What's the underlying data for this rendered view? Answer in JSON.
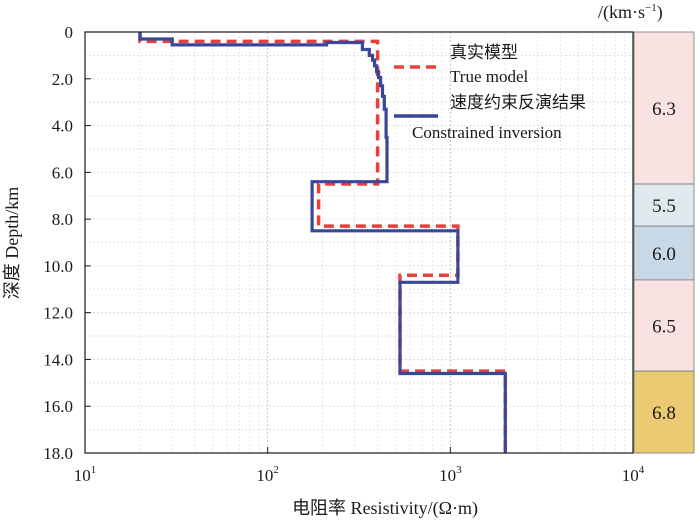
{
  "chart_data": {
    "type": "line",
    "title": "",
    "xlabel": "电阻率 Resistivity/(Ω·m)",
    "ylabel": "深度 Depth/km",
    "x_scale": "log",
    "xlim": [
      10,
      10000
    ],
    "ylim": [
      0,
      18
    ],
    "y_inverted": true,
    "grid": true,
    "x_ticks": [
      {
        "value": 10,
        "base": "10",
        "exp": "1"
      },
      {
        "value": 100,
        "base": "10",
        "exp": "2"
      },
      {
        "value": 1000,
        "base": "10",
        "exp": "3"
      },
      {
        "value": 10000,
        "base": "10",
        "exp": "4"
      }
    ],
    "y_ticks": [
      {
        "value": 0,
        "label": "0"
      },
      {
        "value": 2,
        "label": "2.0"
      },
      {
        "value": 4,
        "label": "4.0"
      },
      {
        "value": 6,
        "label": "6.0"
      },
      {
        "value": 8,
        "label": "8.0"
      },
      {
        "value": 10,
        "label": "10.0"
      },
      {
        "value": 12,
        "label": "12.0"
      },
      {
        "value": 14,
        "label": "14.0"
      },
      {
        "value": 16,
        "label": "16.0"
      },
      {
        "value": 18,
        "label": "18.0"
      }
    ],
    "legend_position": "top-right",
    "series": [
      {
        "name_zh": "真实模型",
        "name_en": "True model",
        "color": "#e8413c",
        "style": "dashed",
        "points": [
          [
            20,
            0
          ],
          [
            20,
            0.4
          ],
          [
            400,
            0.4
          ],
          [
            400,
            6.5
          ],
          [
            190,
            6.5
          ],
          [
            190,
            8.3
          ],
          [
            1100,
            8.3
          ],
          [
            1100,
            10.4
          ],
          [
            530,
            10.4
          ],
          [
            530,
            14.5
          ],
          [
            2000,
            14.5
          ],
          [
            2000,
            18
          ]
        ]
      },
      {
        "name_zh": "速度约束反演结果",
        "name_en": "Constrained inversion",
        "color": "#3a4697",
        "style": "solid",
        "points": [
          [
            20,
            0
          ],
          [
            20,
            0.3
          ],
          [
            30,
            0.3
          ],
          [
            30,
            0.55
          ],
          [
            210,
            0.55
          ],
          [
            210,
            0.45
          ],
          [
            330,
            0.45
          ],
          [
            330,
            0.75
          ],
          [
            360,
            0.75
          ],
          [
            360,
            1.0
          ],
          [
            375,
            1.0
          ],
          [
            375,
            1.2
          ],
          [
            385,
            1.2
          ],
          [
            385,
            1.45
          ],
          [
            395,
            1.45
          ],
          [
            395,
            1.7
          ],
          [
            405,
            1.7
          ],
          [
            405,
            1.95
          ],
          [
            415,
            1.95
          ],
          [
            415,
            2.3
          ],
          [
            425,
            2.3
          ],
          [
            425,
            2.75
          ],
          [
            435,
            2.75
          ],
          [
            435,
            3.3
          ],
          [
            445,
            3.3
          ],
          [
            445,
            4.5
          ],
          [
            450,
            4.5
          ],
          [
            450,
            6.4
          ],
          [
            175,
            6.4
          ],
          [
            175,
            8.5
          ],
          [
            1100,
            8.5
          ],
          [
            1100,
            10.7
          ],
          [
            530,
            10.7
          ],
          [
            530,
            14.6
          ],
          [
            2000,
            14.6
          ],
          [
            2000,
            18
          ]
        ]
      }
    ]
  },
  "velocity_column": {
    "unit_prefix": "/(km·s",
    "unit_exp": "−1",
    "unit_suffix": ")",
    "layers": [
      {
        "top": 0,
        "bottom": 6.5,
        "value": "6.3",
        "color": "#f8e2e2"
      },
      {
        "top": 6.5,
        "bottom": 8.3,
        "value": "5.5",
        "color": "#e0eaee"
      },
      {
        "top": 8.3,
        "bottom": 10.6,
        "value": "6.0",
        "color": "#c7d9e6"
      },
      {
        "top": 10.6,
        "bottom": 14.5,
        "value": "6.5",
        "color": "#f8e2e2"
      },
      {
        "top": 14.5,
        "bottom": 18,
        "value": "6.8",
        "color": "#ecca74"
      }
    ]
  }
}
